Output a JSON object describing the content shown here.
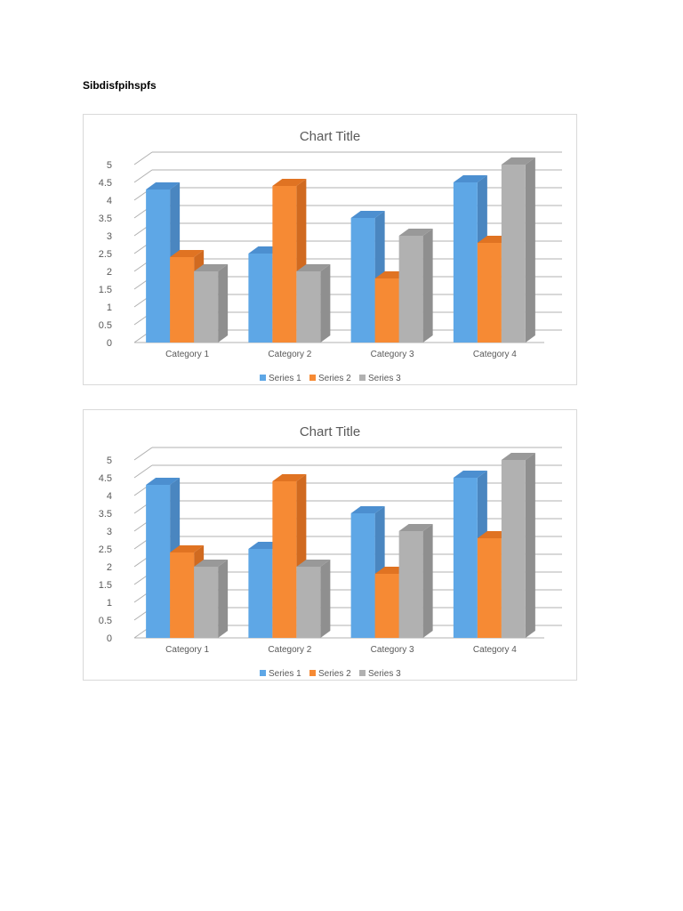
{
  "document": {
    "heading": "Sibdisfpihspfs"
  },
  "colors": {
    "series": [
      "#5ea7e6",
      "#f68a34",
      "#b1b1b1"
    ],
    "series_side": [
      "#4a86c0",
      "#d06a20",
      "#8f8f8f"
    ],
    "series_top": [
      "#4c8fd0",
      "#e07322",
      "#999999"
    ],
    "grid": "#b0b0b0",
    "text": "#595959"
  },
  "chart_data": [
    {
      "type": "bar",
      "title": "Chart Title",
      "categories": [
        "Category 1",
        "Category 2",
        "Category 3",
        "Category 4"
      ],
      "series": [
        {
          "name": "Series 1",
          "values": [
            4.3,
            2.5,
            3.5,
            4.5
          ]
        },
        {
          "name": "Series 2",
          "values": [
            2.4,
            4.4,
            1.8,
            2.8
          ]
        },
        {
          "name": "Series 3",
          "values": [
            2,
            2,
            3,
            5
          ]
        }
      ],
      "ylim": [
        0,
        5
      ],
      "yticks": [
        "0",
        "0.5",
        "1",
        "1.5",
        "2",
        "2.5",
        "3",
        "3.5",
        "4",
        "4.5",
        "5"
      ],
      "grid": true,
      "legend": "bottom",
      "style": "3d-clustered-column"
    },
    {
      "type": "bar",
      "title": "Chart Title",
      "categories": [
        "Category 1",
        "Category 2",
        "Category 3",
        "Category 4"
      ],
      "series": [
        {
          "name": "Series 1",
          "values": [
            4.3,
            2.5,
            3.5,
            4.5
          ]
        },
        {
          "name": "Series 2",
          "values": [
            2.4,
            4.4,
            1.8,
            2.8
          ]
        },
        {
          "name": "Series 3",
          "values": [
            2,
            2,
            3,
            5
          ]
        }
      ],
      "ylim": [
        0,
        5
      ],
      "yticks": [
        "0",
        "0.5",
        "1",
        "1.5",
        "2",
        "2.5",
        "3",
        "3.5",
        "4",
        "4.5",
        "5"
      ],
      "grid": true,
      "legend": "bottom",
      "style": "3d-clustered-column"
    }
  ]
}
